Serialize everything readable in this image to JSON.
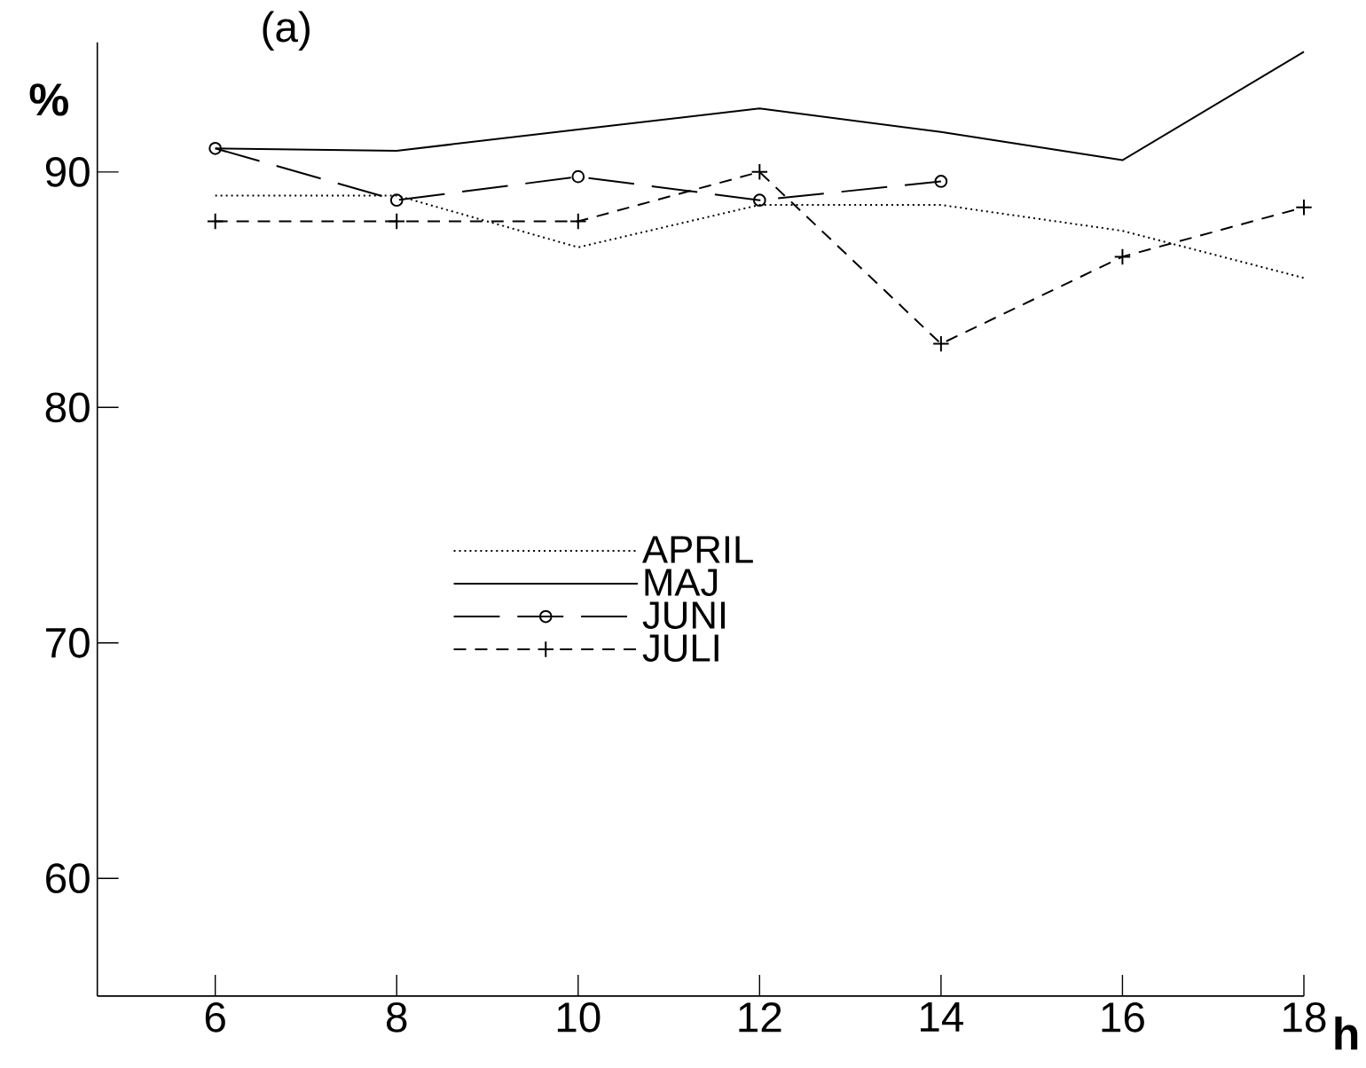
{
  "chart_data": {
    "type": "line",
    "annotations": [
      "(a)"
    ],
    "xlabel": "h",
    "ylabel": "%",
    "x": [
      6,
      8,
      10,
      12,
      14,
      16,
      18
    ],
    "xlim": [
      4.7,
      18
    ],
    "xticks": [
      6,
      8,
      10,
      12,
      14,
      16,
      18
    ],
    "ylim": [
      55,
      95.5
    ],
    "yticks": [
      60,
      70,
      80,
      90
    ],
    "grid": false,
    "legend": "center",
    "series": [
      {
        "name": "APRIL",
        "color": "#000000",
        "line_style": "dotted",
        "marker": "none",
        "values": [
          89,
          89,
          86.8,
          88.6,
          88.6,
          87.5,
          85.5
        ]
      },
      {
        "name": "MAJ",
        "color": "#000000",
        "line_style": "solid",
        "marker": "none",
        "values": [
          91,
          90.9,
          91.8,
          92.7,
          91.7,
          90.5,
          95.1
        ]
      },
      {
        "name": "JUNI",
        "color": "#000000",
        "line_style": "dashed",
        "marker": "circle",
        "values": [
          91,
          88.8,
          89.8,
          88.8,
          89.6,
          null,
          null
        ]
      },
      {
        "name": "JULI",
        "color": "#000000",
        "line_style": "dashed",
        "marker": "cross",
        "values": [
          87.9,
          87.9,
          87.9,
          90,
          82.7,
          86.4,
          88.5
        ]
      }
    ]
  }
}
